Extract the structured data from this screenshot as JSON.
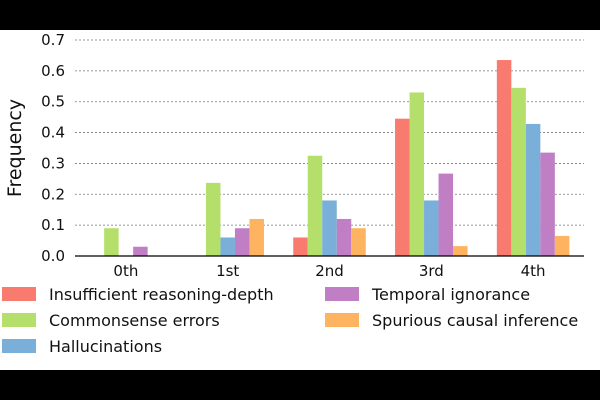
{
  "chart_data": {
    "type": "bar",
    "title": "",
    "xlabel": "",
    "ylabel": "Frequency",
    "categories": [
      "0th",
      "1st",
      "2nd",
      "3rd",
      "4th"
    ],
    "ylim": [
      0,
      0.7
    ],
    "yticks": [
      "0.0",
      "0.1",
      "0.2",
      "0.3",
      "0.4",
      "0.5",
      "0.6",
      "0.7"
    ],
    "grid": "horizontal-dashed",
    "legend_position": "bottom",
    "series": [
      {
        "name": "Insufficient reasoning-depth",
        "color": "#f97a6e",
        "values": [
          0,
          0,
          0.06,
          0.445,
          0.635
        ]
      },
      {
        "name": "Commonsense errors",
        "color": "#b4df6a",
        "values": [
          0.09,
          0.237,
          0.325,
          0.53,
          0.545
        ]
      },
      {
        "name": "Hallucinations",
        "color": "#79afd8",
        "values": [
          0,
          0.06,
          0.18,
          0.18,
          0.428
        ]
      },
      {
        "name": "Temporal ignorance",
        "color": "#c07fc4",
        "values": [
          0.03,
          0.09,
          0.12,
          0.267,
          0.335
        ]
      },
      {
        "name": "Spurious causal inference",
        "color": "#fdb35f",
        "values": [
          0,
          0.12,
          0.09,
          0.032,
          0.065
        ]
      }
    ]
  }
}
